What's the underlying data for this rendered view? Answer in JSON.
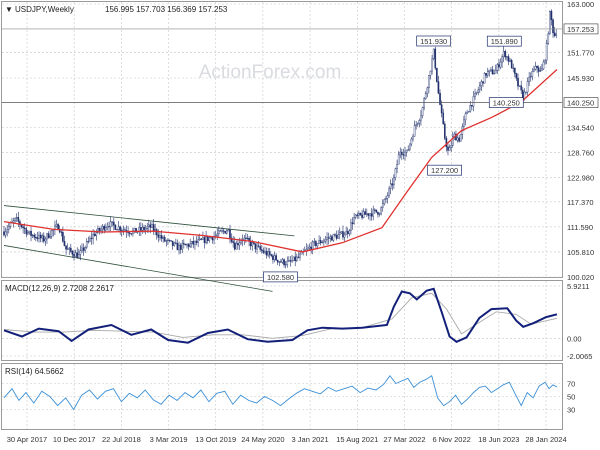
{
  "header": {
    "symbol": "USDJPY,Weekly",
    "ohlc": "156.995 157.703 156.369 157.253",
    "menu_glyph": "▼"
  },
  "watermark": "ActionForex.com",
  "colors": {
    "candle": "#1f2f6b",
    "ma": "#e0312e",
    "channel": "#2c4f3a",
    "macd": "#13207a",
    "macd_signal": "#a8a8a8",
    "rsi": "#3b8fd6",
    "grid": "#c8c8c8",
    "label_box_border": "#1f2f6b",
    "price_tag_bg": "#ffffff",
    "level_line": "#555555"
  },
  "chart_data": [
    {
      "type": "candlestick",
      "title": "USDJPY,Weekly",
      "x_ticks": [
        "30 Apr 2017",
        "10 Dec 2017",
        "22 Jul 2018",
        "3 Mar 2019",
        "13 Oct 2019",
        "24 May 2020",
        "3 Jan 2021",
        "15 Aug 2021",
        "27 Mar 2022",
        "6 Nov 2022",
        "18 Jun 2023",
        "28 Jan 2024"
      ],
      "y_ticks": [
        "163.000",
        "157.253",
        "151.770",
        "145.930",
        "140.250",
        "134.540",
        "128.760",
        "122.980",
        "117.370",
        "111.590",
        "105.810",
        "100.020"
      ],
      "ylim": [
        100.02,
        163.0
      ],
      "current_price": 157.253,
      "level_line": 140.25,
      "annotations": [
        {
          "text": "151.930",
          "value": 151.93
        },
        {
          "text": "151.890",
          "value": 151.89
        },
        {
          "text": "140.250",
          "value": 140.25
        },
        {
          "text": "127.200",
          "value": 127.2
        },
        {
          "text": "102.580",
          "value": 102.58
        }
      ],
      "price_path": [
        [
          0,
          110.5
        ],
        [
          12,
          113.3
        ],
        [
          25,
          110.0
        ],
        [
          40,
          108.7
        ],
        [
          55,
          112.0
        ],
        [
          62,
          106.5
        ],
        [
          75,
          104.9
        ],
        [
          90,
          109.8
        ],
        [
          105,
          112.3
        ],
        [
          118,
          111.2
        ],
        [
          130,
          110.4
        ],
        [
          148,
          111.6
        ],
        [
          160,
          108.6
        ],
        [
          175,
          106.8
        ],
        [
          195,
          108.0
        ],
        [
          212,
          109.5
        ],
        [
          225,
          111.0
        ],
        [
          232,
          107.2
        ],
        [
          240,
          109.0
        ],
        [
          255,
          106.6
        ],
        [
          268,
          104.9
        ],
        [
          278,
          103.6
        ],
        [
          286,
          103.2
        ],
        [
          296,
          104.5
        ],
        [
          310,
          107.3
        ],
        [
          325,
          108.9
        ],
        [
          338,
          109.7
        ],
        [
          345,
          110.3
        ],
        [
          352,
          113.6
        ],
        [
          365,
          114.6
        ],
        [
          378,
          115.2
        ],
        [
          385,
          118.6
        ],
        [
          392,
          122.6
        ],
        [
          398,
          129.2
        ],
        [
          405,
          128.6
        ],
        [
          413,
          134.6
        ],
        [
          420,
          138.1
        ],
        [
          426,
          144.9
        ],
        [
          432,
          151.93
        ],
        [
          437,
          142.0
        ],
        [
          443,
          132.4
        ],
        [
          447,
          128.4
        ],
        [
          452,
          132.7
        ],
        [
          458,
          131.8
        ],
        [
          465,
          138.0
        ],
        [
          470,
          140.0
        ],
        [
          478,
          143.8
        ],
        [
          485,
          147.1
        ],
        [
          494,
          147.4
        ],
        [
          503,
          151.89
        ],
        [
          510,
          149.0
        ],
        [
          516,
          144.7
        ],
        [
          522,
          141.5
        ],
        [
          530,
          146.8
        ],
        [
          536,
          148.5
        ],
        [
          540,
          147.0
        ],
        [
          545,
          151.7
        ],
        [
          549,
          161.1
        ],
        [
          553,
          155.5
        ],
        [
          556,
          157.25
        ]
      ],
      "moving_average_path": [
        [
          0,
          112.8
        ],
        [
          50,
          111.0
        ],
        [
          100,
          110.4
        ],
        [
          150,
          110.6
        ],
        [
          200,
          109.6
        ],
        [
          250,
          108.2
        ],
        [
          300,
          105.8
        ],
        [
          340,
          107.9
        ],
        [
          380,
          111.4
        ],
        [
          405,
          119.6
        ],
        [
          430,
          127.6
        ],
        [
          460,
          133.8
        ],
        [
          490,
          136.8
        ],
        [
          520,
          140.4
        ],
        [
          556,
          147.9
        ]
      ],
      "channel_upper": [
        [
          0,
          116.5
        ],
        [
          292,
          109.5
        ]
      ],
      "channel_lower": [
        [
          0,
          107.3
        ],
        [
          270,
          96.7
        ]
      ]
    },
    {
      "type": "line",
      "title": "MACD(12,26,9) 2.7208 2.2617",
      "y_ticks": [
        "5.9211",
        "0.00",
        "-2.0065"
      ],
      "ylim": [
        -2.0065,
        5.9211
      ],
      "series": [
        {
          "name": "MACD",
          "values": [
            [
              0,
              0.9
            ],
            [
              18,
              0.2
            ],
            [
              35,
              1.1
            ],
            [
              55,
              0.8
            ],
            [
              68,
              -0.3
            ],
            [
              85,
              1.0
            ],
            [
              108,
              1.5
            ],
            [
              128,
              0.4
            ],
            [
              148,
              1.0
            ],
            [
              165,
              -0.2
            ],
            [
              185,
              -0.5
            ],
            [
              205,
              0.6
            ],
            [
              225,
              1.0
            ],
            [
              245,
              -0.1
            ],
            [
              265,
              -0.4
            ],
            [
              290,
              -0.2
            ],
            [
              305,
              0.9
            ],
            [
              320,
              1.2
            ],
            [
              340,
              1.1
            ],
            [
              360,
              1.2
            ],
            [
              385,
              1.5
            ],
            [
              392,
              3.6
            ],
            [
              400,
              5.3
            ],
            [
              408,
              5.1
            ],
            [
              415,
              4.4
            ],
            [
              425,
              5.4
            ],
            [
              432,
              5.6
            ],
            [
              440,
              3.0
            ],
            [
              448,
              0.2
            ],
            [
              455,
              -0.4
            ],
            [
              465,
              0.1
            ],
            [
              478,
              2.3
            ],
            [
              490,
              3.3
            ],
            [
              506,
              3.4
            ],
            [
              515,
              2.0
            ],
            [
              522,
              1.3
            ],
            [
              532,
              1.7
            ],
            [
              545,
              2.4
            ],
            [
              556,
              2.72
            ]
          ]
        },
        {
          "name": "Signal",
          "values": [
            [
              0,
              1.0
            ],
            [
              30,
              0.7
            ],
            [
              60,
              0.7
            ],
            [
              90,
              0.9
            ],
            [
              120,
              0.8
            ],
            [
              150,
              0.7
            ],
            [
              180,
              0.1
            ],
            [
              210,
              0.4
            ],
            [
              240,
              0.4
            ],
            [
              270,
              0.0
            ],
            [
              300,
              0.3
            ],
            [
              330,
              1.1
            ],
            [
              360,
              1.2
            ],
            [
              390,
              2.2
            ],
            [
              410,
              4.6
            ],
            [
              430,
              5.1
            ],
            [
              445,
              3.3
            ],
            [
              460,
              0.5
            ],
            [
              475,
              1.6
            ],
            [
              495,
              3.0
            ],
            [
              515,
              2.7
            ],
            [
              530,
              1.6
            ],
            [
              556,
              2.26
            ]
          ]
        }
      ]
    },
    {
      "type": "line",
      "title": "RSI(14) 64.5662",
      "y_ticks": [
        "70",
        "50",
        "30"
      ],
      "ylim": [
        0,
        100
      ],
      "series": [
        {
          "name": "RSI",
          "values": [
            [
              0,
              48
            ],
            [
              8,
              62
            ],
            [
              15,
              44
            ],
            [
              22,
              56
            ],
            [
              30,
              40
            ],
            [
              38,
              58
            ],
            [
              46,
              50
            ],
            [
              54,
              36
            ],
            [
              62,
              48
            ],
            [
              70,
              30
            ],
            [
              78,
              52
            ],
            [
              86,
              60
            ],
            [
              94,
              46
            ],
            [
              102,
              58
            ],
            [
              110,
              62
            ],
            [
              118,
              42
            ],
            [
              126,
              55
            ],
            [
              134,
              48
            ],
            [
              142,
              60
            ],
            [
              150,
              45
            ],
            [
              158,
              38
            ],
            [
              166,
              52
            ],
            [
              174,
              44
            ],
            [
              182,
              56
            ],
            [
              190,
              48
            ],
            [
              198,
              60
            ],
            [
              206,
              42
            ],
            [
              214,
              55
            ],
            [
              222,
              58
            ],
            [
              230,
              38
            ],
            [
              238,
              52
            ],
            [
              246,
              44
            ],
            [
              254,
              40
            ],
            [
              262,
              50
            ],
            [
              270,
              44
            ],
            [
              278,
              36
            ],
            [
              286,
              46
            ],
            [
              294,
              55
            ],
            [
              302,
              62
            ],
            [
              310,
              58
            ],
            [
              318,
              54
            ],
            [
              326,
              64
            ],
            [
              334,
              58
            ],
            [
              342,
              62
            ],
            [
              350,
              66
            ],
            [
              358,
              56
            ],
            [
              366,
              63
            ],
            [
              374,
              60
            ],
            [
              382,
              69
            ],
            [
              388,
              82
            ],
            [
              394,
              70
            ],
            [
              400,
              74
            ],
            [
              406,
              78
            ],
            [
              412,
              64
            ],
            [
              418,
              72
            ],
            [
              424,
              76
            ],
            [
              430,
              82
            ],
            [
              436,
              48
            ],
            [
              442,
              36
            ],
            [
              448,
              42
            ],
            [
              454,
              52
            ],
            [
              460,
              38
            ],
            [
              466,
              46
            ],
            [
              472,
              56
            ],
            [
              478,
              64
            ],
            [
              484,
              66
            ],
            [
              490,
              56
            ],
            [
              496,
              62
            ],
            [
              502,
              68
            ],
            [
              508,
              72
            ],
            [
              514,
              54
            ],
            [
              520,
              36
            ],
            [
              526,
              56
            ],
            [
              532,
              48
            ],
            [
              538,
              66
            ],
            [
              544,
              72
            ],
            [
              548,
              62
            ],
            [
              552,
              68
            ],
            [
              556,
              64.57
            ]
          ]
        }
      ]
    }
  ]
}
